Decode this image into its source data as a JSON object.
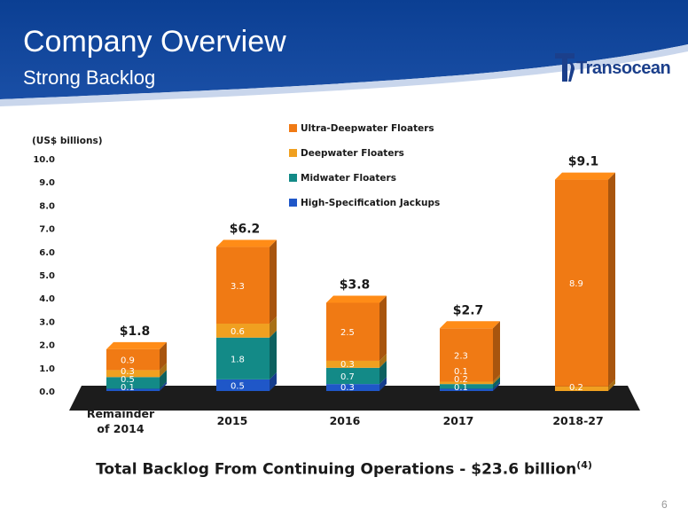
{
  "slide": {
    "title": "Company Overview",
    "subtitle": "Strong Backlog",
    "logo_text": "Transocean",
    "footnote_main": "Total Backlog From Continuing Operations - $23.6 billion",
    "footnote_ref": "(4)",
    "page_number": "6"
  },
  "colors": {
    "banner": "#0a3a8c",
    "banner_accent": "#2f5fb0",
    "ultra": "#f07a14",
    "deep": "#f0a020",
    "mid": "#138a87",
    "jack": "#1f57c8",
    "floor": "#1c1c1c"
  },
  "chart_data": {
    "type": "bar",
    "stacked": true,
    "unit_label": "(US$ billions)",
    "ylim": [
      0,
      10
    ],
    "y_ticks": [
      "0.0",
      "1.0",
      "2.0",
      "3.0",
      "4.0",
      "5.0",
      "6.0",
      "7.0",
      "8.0",
      "9.0",
      "10.0"
    ],
    "categories": [
      [
        "Remainder",
        "of 2014"
      ],
      [
        "2015"
      ],
      [
        "2016"
      ],
      [
        "2017"
      ],
      [
        "2018-27"
      ]
    ],
    "totals": [
      "$1.8",
      "$6.2",
      "$3.8",
      "$2.7",
      "$9.1"
    ],
    "legend_position": "top-center",
    "series": [
      {
        "name": "High-Specification Jackups",
        "color_key": "jack",
        "values": [
          0.1,
          0.5,
          0.3,
          0.1,
          0
        ],
        "labels": [
          "0.1",
          "0.5",
          "0.3",
          "0.1",
          ""
        ]
      },
      {
        "name": "Midwater Floaters",
        "color_key": "mid",
        "values": [
          0.5,
          1.8,
          0.7,
          0.2,
          0
        ],
        "labels": [
          "0.5",
          "1.8",
          "0.7",
          "0.2",
          ""
        ]
      },
      {
        "name": "Deepwater Floaters",
        "color_key": "deep",
        "values": [
          0.3,
          0.6,
          0.3,
          0.1,
          0.2
        ],
        "labels": [
          "0.3",
          "0.6",
          "0.3",
          "0.1",
          "0.2"
        ]
      },
      {
        "name": "Ultra-Deepwater Floaters",
        "color_key": "ultra",
        "values": [
          0.9,
          3.3,
          2.5,
          2.3,
          8.9
        ],
        "labels": [
          "0.9",
          "3.3",
          "2.5",
          "2.3",
          "8.9"
        ]
      }
    ]
  }
}
